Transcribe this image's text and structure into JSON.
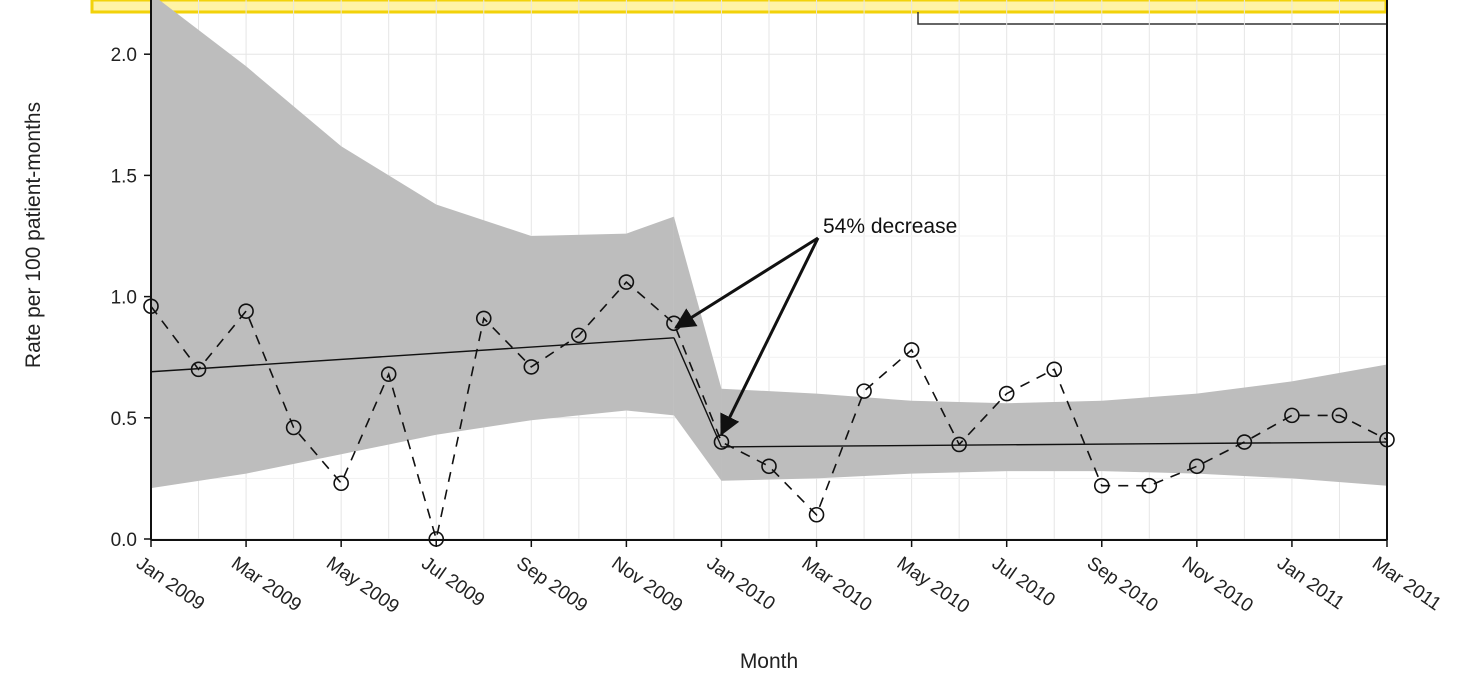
{
  "chart_data": {
    "type": "line",
    "title": "",
    "xlabel": "Month",
    "ylabel": "Rate per 100 patient-months",
    "ylim": [
      0,
      2.2
    ],
    "y_ticks": [
      "0.0",
      "0.5",
      "1.0",
      "1.5",
      "2.0"
    ],
    "x_tick_labels": [
      "Jan 2009",
      "Mar 2009",
      "May 2009",
      "Jul 2009",
      "Sep 2009",
      "Nov 2009",
      "Jan 2010",
      "Mar 2010",
      "May 2010",
      "Jul 2010",
      "Sep 2010",
      "Nov 2010",
      "Jan 2011",
      "Mar 2011"
    ],
    "months": [
      "Jan 2009",
      "Feb 2009",
      "Mar 2009",
      "Apr 2009",
      "May 2009",
      "Jun 2009",
      "Jul 2009",
      "Aug 2009",
      "Sep 2009",
      "Oct 2009",
      "Nov 2009",
      "Dec 2009",
      "Jan 2010",
      "Feb 2010",
      "Mar 2010",
      "Apr 2010",
      "May 2010",
      "Jun 2010",
      "Jul 2010",
      "Aug 2010",
      "Sep 2010",
      "Oct 2010",
      "Nov 2010",
      "Dec 2010",
      "Jan 2011",
      "Feb 2011",
      "Mar 2011"
    ],
    "series": [
      {
        "style": "dashed-with-circles",
        "values": [
          0.96,
          0.7,
          0.94,
          0.46,
          0.23,
          0.68,
          0.0,
          0.91,
          0.71,
          0.84,
          1.06,
          0.89,
          0.4,
          0.3,
          0.1,
          0.61,
          0.78,
          0.39,
          0.6,
          0.7,
          0.22,
          0.22,
          0.3,
          0.4,
          0.51,
          0.51,
          0.41
        ]
      }
    ],
    "trend_segments": [
      {
        "from": "Jan 2009",
        "to": "Dec 2009",
        "y_start": 0.69,
        "y_end": 0.83
      },
      {
        "from": "Jan 2010",
        "to": "Mar 2011",
        "y_start": 0.38,
        "y_end": 0.4
      }
    ],
    "confidence_band": {
      "color": "#bdbdbd",
      "pre": {
        "months": [
          "Jan 2009",
          "Mar 2009",
          "May 2009",
          "Jul 2009",
          "Sep 2009",
          "Nov 2009",
          "Dec 2009"
        ],
        "upper": [
          2.25,
          1.95,
          1.62,
          1.38,
          1.25,
          1.26,
          1.33
        ],
        "lower": [
          0.21,
          0.27,
          0.35,
          0.43,
          0.49,
          0.53,
          0.51
        ]
      },
      "post": {
        "months": [
          "Jan 2010",
          "Mar 2010",
          "May 2010",
          "Jul 2010",
          "Sep 2010",
          "Nov 2010",
          "Jan 2011",
          "Mar 2011"
        ],
        "upper": [
          0.62,
          0.6,
          0.57,
          0.56,
          0.57,
          0.6,
          0.65,
          0.72
        ],
        "lower": [
          0.24,
          0.25,
          0.27,
          0.28,
          0.28,
          0.27,
          0.25,
          0.22
        ]
      }
    },
    "annotation": {
      "text": "54% decrease"
    },
    "grid": true,
    "legend": "none"
  },
  "colors": {
    "banner_fill": "#fff3a6",
    "banner_border": "#f2d20a",
    "band": "#bdbdbd",
    "line": "#111111"
  }
}
